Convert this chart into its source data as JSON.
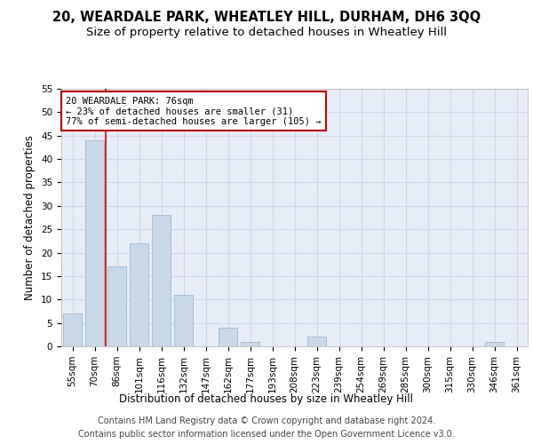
{
  "title1": "20, WEARDALE PARK, WHEATLEY HILL, DURHAM, DH6 3QQ",
  "title2": "Size of property relative to detached houses in Wheatley Hill",
  "xlabel": "Distribution of detached houses by size in Wheatley Hill",
  "ylabel": "Number of detached properties",
  "categories": [
    "55sqm",
    "70sqm",
    "86sqm",
    "101sqm",
    "116sqm",
    "132sqm",
    "147sqm",
    "162sqm",
    "177sqm",
    "193sqm",
    "208sqm",
    "223sqm",
    "239sqm",
    "254sqm",
    "269sqm",
    "285sqm",
    "300sqm",
    "315sqm",
    "330sqm",
    "346sqm",
    "361sqm"
  ],
  "values": [
    7,
    44,
    17,
    22,
    28,
    11,
    0,
    4,
    1,
    0,
    0,
    2,
    0,
    0,
    0,
    0,
    0,
    0,
    0,
    1,
    0
  ],
  "bar_color": "#c8d8e8",
  "bar_edge_color": "#a0b8d0",
  "grid_color": "#d0d8e8",
  "bg_color": "#e8eef8",
  "vline_color": "#cc0000",
  "annotation_text": "20 WEARDALE PARK: 76sqm\n← 23% of detached houses are smaller (31)\n77% of semi-detached houses are larger (105) →",
  "annotation_box_color": "#ffffff",
  "annotation_box_edge": "#cc0000",
  "ylim": [
    0,
    55
  ],
  "yticks": [
    0,
    5,
    10,
    15,
    20,
    25,
    30,
    35,
    40,
    45,
    50,
    55
  ],
  "footer": "Contains HM Land Registry data © Crown copyright and database right 2024.\nContains public sector information licensed under the Open Government Licence v3.0.",
  "title_fontsize": 10.5,
  "subtitle_fontsize": 9.5,
  "tick_fontsize": 7.5,
  "label_fontsize": 8.5,
  "footer_fontsize": 7,
  "ann_fontsize": 7.5
}
